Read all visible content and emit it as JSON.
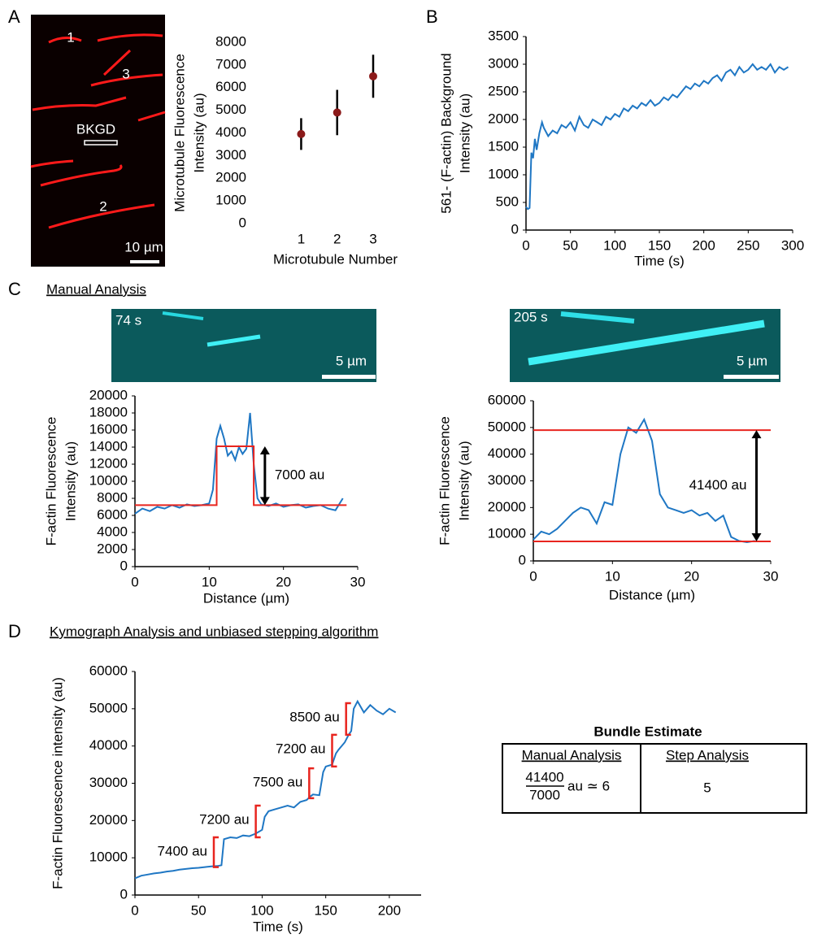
{
  "chart_data": [
    {
      "type": "scatter",
      "xlabel": "Microtubule Number",
      "ylabel": [
        "Microtubule Fluorescence",
        "Intensity (au)"
      ],
      "x": [
        1,
        2,
        3
      ],
      "values": [
        3950,
        4900,
        6500
      ],
      "errors": [
        700,
        1000,
        950
      ],
      "color": "#8b1a1a",
      "error_color": "#000000",
      "xlim": [
        0.2,
        3.7
      ],
      "xticks": [
        1,
        2,
        3
      ],
      "ylim": [
        0,
        8000
      ],
      "yticks": [
        0,
        1000,
        2000,
        3000,
        4000,
        5000,
        6000,
        7000,
        8000
      ],
      "axes": false
    },
    {
      "type": "line",
      "xlabel": "Time (s)",
      "ylabel": [
        "561- (F-actin) Background",
        "Intensity (au)"
      ],
      "series": [
        {
          "color": "#1f77c4",
          "x": [
            0,
            2,
            4,
            5,
            6,
            8,
            10,
            12,
            15,
            18,
            20,
            25,
            30,
            35,
            40,
            45,
            50,
            55,
            60,
            65,
            70,
            75,
            80,
            85,
            90,
            95,
            100,
            105,
            110,
            115,
            120,
            125,
            130,
            135,
            140,
            145,
            150,
            155,
            160,
            165,
            170,
            175,
            180,
            185,
            190,
            195,
            200,
            205,
            210,
            215,
            220,
            225,
            230,
            235,
            240,
            245,
            250,
            255,
            260,
            265,
            270,
            275,
            280,
            285,
            290,
            295
          ],
          "values": [
            420,
            380,
            400,
            900,
            1400,
            1300,
            1650,
            1450,
            1750,
            1950,
            1850,
            1700,
            1800,
            1750,
            1900,
            1850,
            1950,
            1800,
            2050,
            1900,
            1850,
            2000,
            1950,
            1900,
            2050,
            2000,
            2100,
            2050,
            2200,
            2150,
            2250,
            2200,
            2300,
            2250,
            2350,
            2250,
            2300,
            2400,
            2350,
            2450,
            2400,
            2500,
            2600,
            2550,
            2650,
            2600,
            2700,
            2650,
            2750,
            2800,
            2700,
            2850,
            2900,
            2800,
            2950,
            2850,
            2900,
            3000,
            2900,
            2950,
            2900,
            3000,
            2850,
            2950,
            2900,
            2950
          ]
        }
      ],
      "xlim": [
        0,
        300
      ],
      "xticks": [
        0,
        50,
        100,
        150,
        200,
        250,
        300
      ],
      "ylim": [
        0,
        3500
      ],
      "yticks": [
        0,
        500,
        1000,
        1500,
        2000,
        2500,
        3000,
        3500
      ],
      "axes": true
    },
    {
      "type": "line",
      "xlabel": "Distance (µm)",
      "ylabel": [
        "F-actin Fluorescence",
        "Intensity (au)"
      ],
      "series": [
        {
          "color": "#1f77c4",
          "x": [
            0,
            1,
            2,
            3,
            4,
            5,
            6,
            7,
            8,
            9,
            10,
            10.5,
            11,
            11.5,
            12,
            12.5,
            13,
            13.5,
            14,
            14.5,
            15,
            15.5,
            16,
            16.5,
            17,
            18,
            19,
            20,
            21,
            22,
            23,
            24,
            25,
            26,
            27,
            28
          ],
          "values": [
            6200,
            6800,
            6500,
            7000,
            6800,
            7200,
            6900,
            7300,
            7100,
            7200,
            7400,
            9000,
            15000,
            16500,
            15000,
            13000,
            13500,
            12500,
            14000,
            13200,
            13800,
            18000,
            12000,
            8000,
            7300,
            7100,
            7400,
            7000,
            7200,
            7300,
            6900,
            7100,
            7200,
            6800,
            6600,
            8000
          ]
        },
        {
          "color": "#e8251f",
          "x": [
            0,
            11,
            11,
            16,
            16,
            28.5
          ],
          "values": [
            7200,
            7200,
            14100,
            14100,
            7200,
            7200
          ]
        }
      ],
      "annotations": [
        {
          "text": "7000 au",
          "x": 17.5,
          "y1": 7200,
          "y2": 14100
        }
      ],
      "xlim": [
        0,
        30
      ],
      "xticks": [
        0,
        10,
        20,
        30
      ],
      "ylim": [
        0,
        20000
      ],
      "yticks": [
        0,
        2000,
        4000,
        6000,
        8000,
        10000,
        12000,
        14000,
        16000,
        18000,
        20000
      ],
      "axes": true
    },
    {
      "type": "line",
      "xlabel": "Distance (µm)",
      "ylabel": [
        "F-actin Fluorescence",
        "Intensity (au)"
      ],
      "series": [
        {
          "color": "#1f77c4",
          "x": [
            0,
            1,
            2,
            3,
            4,
            5,
            6,
            7,
            8,
            9,
            10,
            11,
            12,
            13,
            14,
            15,
            16,
            17,
            18,
            19,
            20,
            21,
            22,
            23,
            24,
            25,
            26,
            27,
            28
          ],
          "values": [
            8000,
            11000,
            10000,
            12000,
            15000,
            18000,
            20000,
            19000,
            14000,
            22000,
            21000,
            40000,
            50000,
            48000,
            53000,
            45000,
            25000,
            20000,
            19000,
            18000,
            19000,
            17000,
            18000,
            15000,
            17000,
            9000,
            7500,
            7000,
            7500
          ]
        },
        {
          "color": "#e8251f",
          "x": [
            0,
            30
          ],
          "values": [
            49000,
            49000
          ]
        },
        {
          "color": "#e8251f",
          "x": [
            0,
            30
          ],
          "values": [
            7300,
            7300
          ]
        }
      ],
      "annotations": [
        {
          "text": "41400 au",
          "x": 28.2,
          "y1": 7300,
          "y2": 49000
        }
      ],
      "xlim": [
        0,
        30
      ],
      "xticks": [
        0,
        10,
        20,
        30
      ],
      "ylim": [
        0,
        60000
      ],
      "yticks": [
        0,
        10000,
        20000,
        30000,
        40000,
        50000,
        60000
      ],
      "axes": true
    },
    {
      "type": "line",
      "xlabel": "Time (s)",
      "ylabel": [
        "F-actin Fluorescence intensity (au)"
      ],
      "series": [
        {
          "color": "#1f77c4",
          "x": [
            0,
            5,
            10,
            15,
            20,
            25,
            30,
            35,
            40,
            45,
            50,
            55,
            60,
            65,
            68,
            70,
            75,
            80,
            85,
            90,
            95,
            100,
            102,
            105,
            110,
            115,
            120,
            125,
            130,
            135,
            138,
            140,
            145,
            148,
            150,
            155,
            158,
            160,
            165,
            168,
            170,
            172,
            175,
            180,
            185,
            190,
            195,
            200,
            205
          ],
          "values": [
            4500,
            5200,
            5500,
            5800,
            6000,
            6300,
            6500,
            6800,
            7000,
            7200,
            7300,
            7500,
            7700,
            7800,
            8000,
            15000,
            15500,
            15300,
            16000,
            15800,
            16500,
            17500,
            21000,
            22500,
            23000,
            23500,
            24000,
            23500,
            25000,
            25500,
            26500,
            27000,
            26800,
            33000,
            34500,
            35000,
            38000,
            39000,
            41000,
            43000,
            44000,
            50000,
            52000,
            49000,
            51000,
            49500,
            48500,
            50000,
            49000
          ]
        }
      ],
      "steps": [
        {
          "label": "7400 au",
          "x": 62,
          "y1": 7500,
          "y2": 15500
        },
        {
          "label": "7200 au",
          "x": 95,
          "y1": 15500,
          "y2": 24000
        },
        {
          "label": "7500 au",
          "x": 137,
          "y1": 26000,
          "y2": 34000
        },
        {
          "label": "7200 au",
          "x": 155,
          "y1": 34500,
          "y2": 43000
        },
        {
          "label": "8500 au",
          "x": 166,
          "y1": 43000,
          "y2": 51500
        }
      ],
      "step_color": "#e8251f",
      "xlim": [
        0,
        225
      ],
      "xticks": [
        0,
        50,
        100,
        150,
        200
      ],
      "ylim": [
        0,
        60000
      ],
      "yticks": [
        0,
        10000,
        20000,
        30000,
        40000,
        50000,
        60000
      ],
      "axes": true
    }
  ],
  "panel_labels": [
    "A",
    "B",
    "C",
    "D"
  ],
  "section_titles": [
    "Manual Analysis",
    "Kymograph Analysis and unbiased stepping algorithm"
  ],
  "images": [
    {
      "labels": [
        "1",
        "3",
        "BKGD",
        "2"
      ],
      "scale_bar": "10 µm"
    },
    {
      "time": "74 s",
      "scale_bar": "5 µm"
    },
    {
      "time": "205 s",
      "scale_bar": "5 µm"
    }
  ],
  "table": {
    "title": "Bundle Estimate",
    "headers": [
      "Manual Analysis",
      "Step Analysis"
    ],
    "numerator": "41400",
    "denominator": "7000",
    "suffix": "au ≃ 6",
    "step": "5"
  }
}
